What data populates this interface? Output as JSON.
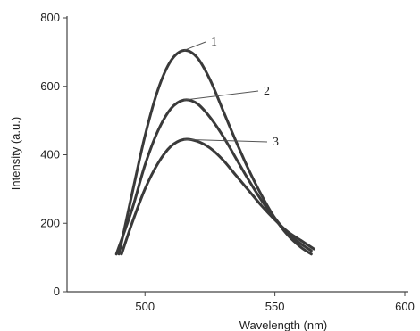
{
  "chart_data": {
    "type": "line",
    "xlabel": "Wavelength (nm)",
    "ylabel": "Intensity (a.u.)",
    "xlim": [
      470,
      600
    ],
    "ylim": [
      0,
      800
    ],
    "x_ticks": [
      500,
      550,
      600
    ],
    "y_ticks": [
      0,
      200,
      400,
      600,
      800
    ],
    "grid": false,
    "line_color": "#3a3a3a",
    "series": [
      {
        "name": "1",
        "x": [
          490,
          495,
          500,
          505,
          510,
          515,
          520,
          525,
          530,
          535,
          540,
          545,
          550,
          555,
          560,
          564
        ],
        "y": [
          110,
          285,
          455,
          590,
          675,
          705,
          685,
          620,
          530,
          440,
          355,
          280,
          215,
          165,
          130,
          110
        ]
      },
      {
        "name": "2",
        "x": [
          489,
          495,
          500,
          505,
          510,
          515,
          520,
          525,
          530,
          535,
          540,
          545,
          550,
          555,
          560,
          564
        ],
        "y": [
          110,
          240,
          370,
          470,
          535,
          560,
          550,
          510,
          455,
          390,
          325,
          265,
          215,
          170,
          140,
          120
        ]
      },
      {
        "name": "3",
        "x": [
          491,
          495,
          500,
          505,
          510,
          515,
          520,
          525,
          530,
          535,
          540,
          545,
          550,
          555,
          560,
          565
        ],
        "y": [
          110,
          200,
          300,
          375,
          425,
          445,
          440,
          420,
          385,
          340,
          295,
          250,
          210,
          175,
          150,
          125
        ]
      }
    ]
  }
}
